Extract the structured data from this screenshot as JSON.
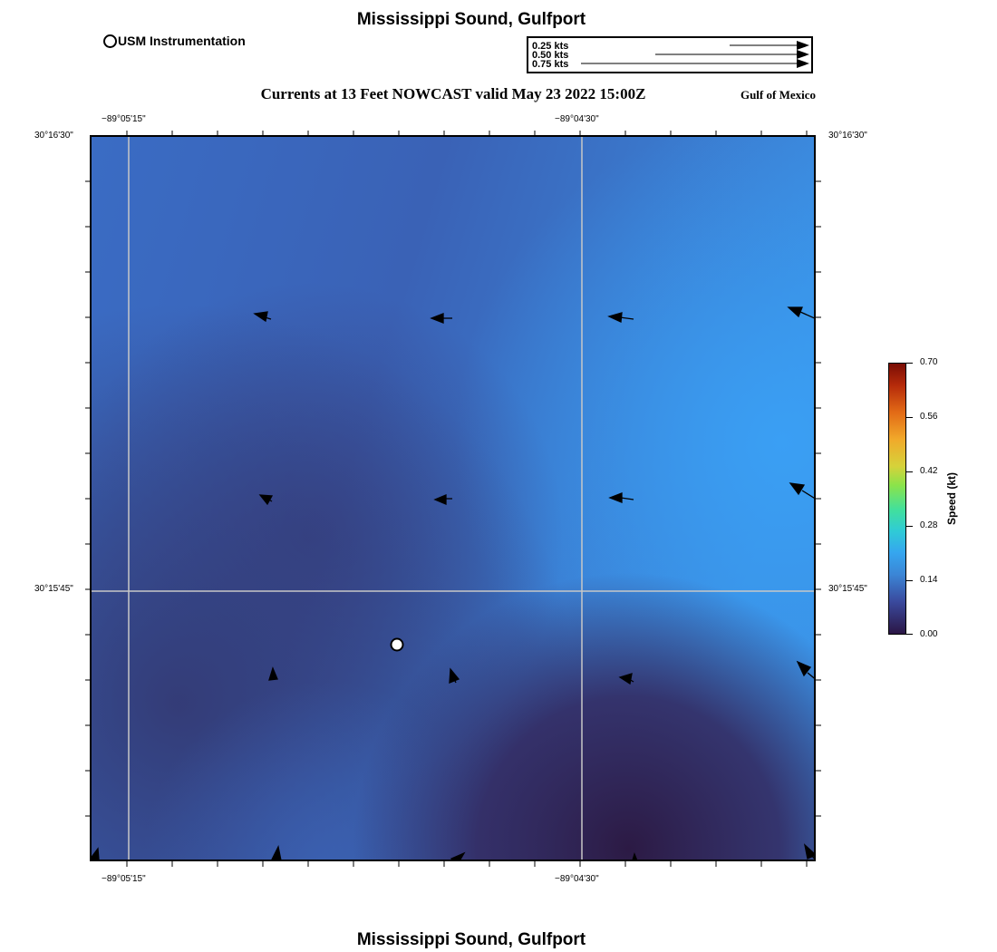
{
  "header": {
    "title": "Mississippi Sound, Gulfport",
    "legend_label": "USM Instrumentation",
    "subtitle": "Currents at 13 Feet NOWCAST valid May 23 2022 15:00Z",
    "region": "Gulf of Mexico"
  },
  "footer": {
    "title": "Mississippi Sound, Gulfport"
  },
  "vector_scale": {
    "labels": [
      "0.25 kts",
      "0.50 kts",
      "0.75 kts"
    ],
    "speeds_kt": [
      0.25,
      0.5,
      0.75
    ]
  },
  "axes": {
    "lon_labels": [
      "−89°05'15\"",
      "−89°04'30\""
    ],
    "lat_labels": [
      "30°16'30\"",
      "30°15'45\""
    ]
  },
  "colorbar": {
    "title": "Speed (kt)",
    "tick_labels": [
      "0.70",
      "0.56",
      "0.42",
      "0.28",
      "0.14",
      "0.00"
    ],
    "min": 0.0,
    "max": 0.7
  },
  "colors": {
    "water_light": "#3a93e8",
    "water_mid": "#3a64b8",
    "water_dark": "#33315e",
    "water_darkest": "#2b1a45",
    "grid": "#c8c8c8",
    "marker_fill": "#ffffff",
    "arrow": "#000000"
  }
}
